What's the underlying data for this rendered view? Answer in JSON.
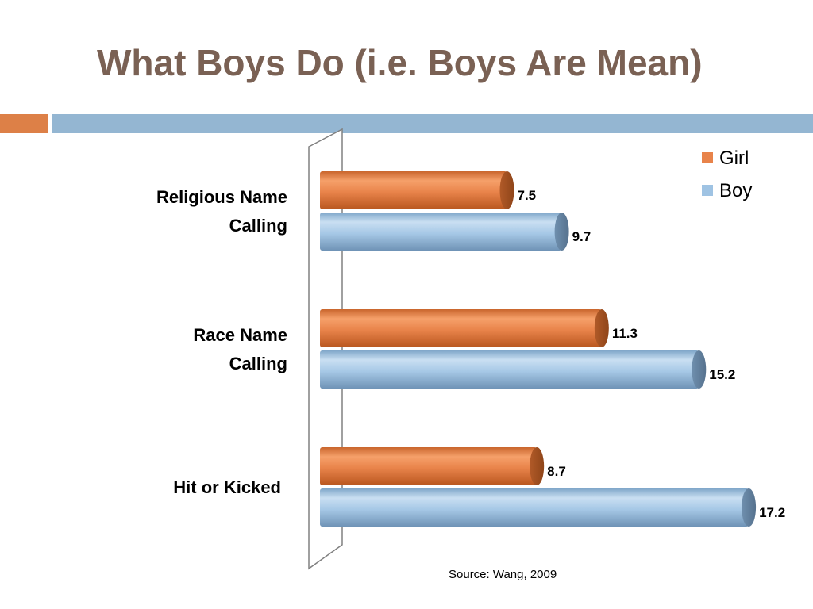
{
  "slide": {
    "title": "What Boys Do (i.e. Boys Are Mean)",
    "source": "Source: Wang, 2009"
  },
  "chart_data": {
    "type": "bar",
    "orientation": "horizontal",
    "categories": [
      [
        "Religious Name",
        "Calling"
      ],
      [
        "Race Name",
        "Calling"
      ],
      [
        "Hit or Kicked"
      ]
    ],
    "series": [
      {
        "name": "Girl",
        "values": [
          7.5,
          11.3,
          8.7
        ],
        "color": "#e8834a"
      },
      {
        "name": "Boy",
        "values": [
          9.7,
          15.2,
          17.2
        ],
        "color": "#9fc3e3"
      }
    ],
    "xlim": [
      0,
      20
    ],
    "grid": false,
    "legend": "top-right",
    "data_labels": true
  }
}
